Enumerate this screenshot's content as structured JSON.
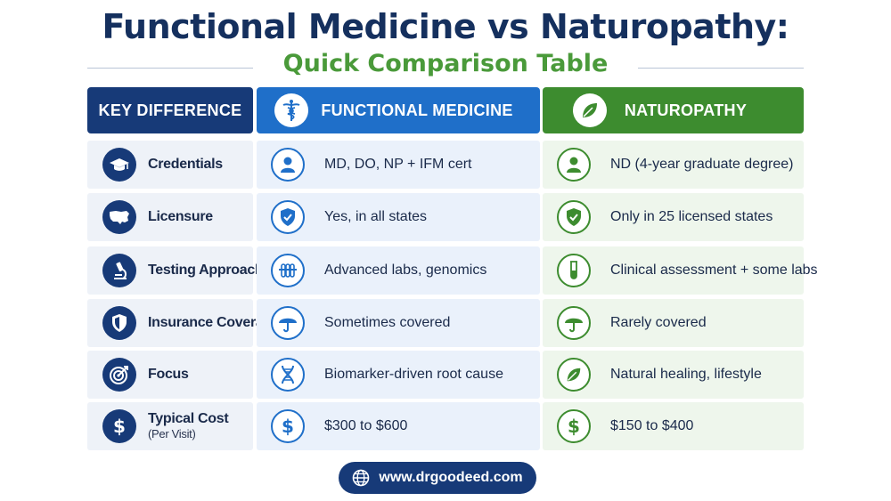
{
  "title": "Functional Medicine vs Naturopathy:",
  "subtitle": "Quick Comparison Table",
  "headers": {
    "key": "KEY DIFFERENCE",
    "functional": "FUNCTIONAL MEDICINE",
    "naturopathy": "NATUROPATHY"
  },
  "rows": [
    {
      "key": "Credentials",
      "key_sub": "",
      "key_icon": "graduation-cap-icon",
      "functional": "MD, DO, NP + IFM cert",
      "functional_icon": "person-icon",
      "naturopathy": "ND (4-year graduate degree)",
      "naturopathy_icon": "person-icon"
    },
    {
      "key": "Licensure",
      "key_sub": "",
      "key_icon": "usa-map-icon",
      "functional": "Yes, in all states",
      "functional_icon": "shield-check-icon",
      "naturopathy": "Only in 25 licensed states",
      "naturopathy_icon": "shield-check-icon"
    },
    {
      "key": "Testing Approach",
      "key_sub": "",
      "key_icon": "microscope-icon",
      "functional": "Advanced labs, genomics",
      "functional_icon": "test-tubes-icon",
      "naturopathy": "Clinical assessment + some labs",
      "naturopathy_icon": "test-tube-icon"
    },
    {
      "key": "Insurance Coverage",
      "key_sub": "",
      "key_icon": "shield-icon",
      "functional": "Sometimes covered",
      "functional_icon": "umbrella-icon",
      "naturopathy": "Rarely covered",
      "naturopathy_icon": "umbrella-icon"
    },
    {
      "key": "Focus",
      "key_sub": "",
      "key_icon": "target-icon",
      "functional": "Biomarker-driven root cause",
      "functional_icon": "dna-icon",
      "naturopathy": "Natural healing, lifestyle",
      "naturopathy_icon": "leaf-icon"
    },
    {
      "key": "Typical Cost",
      "key_sub": "(Per Visit)",
      "key_icon": "dollar-icon",
      "functional": "$300 to $600",
      "functional_icon": "dollar-icon",
      "naturopathy": "$150 to $400",
      "naturopathy_icon": "dollar-icon"
    }
  ],
  "footer": {
    "url": "www.drgoodeed.com",
    "icon": "globe-icon"
  },
  "colors": {
    "navy": "#173a78",
    "blue": "#1f6fc9",
    "green": "#3d8c2f",
    "subtitle_green": "#4a9a3a"
  }
}
